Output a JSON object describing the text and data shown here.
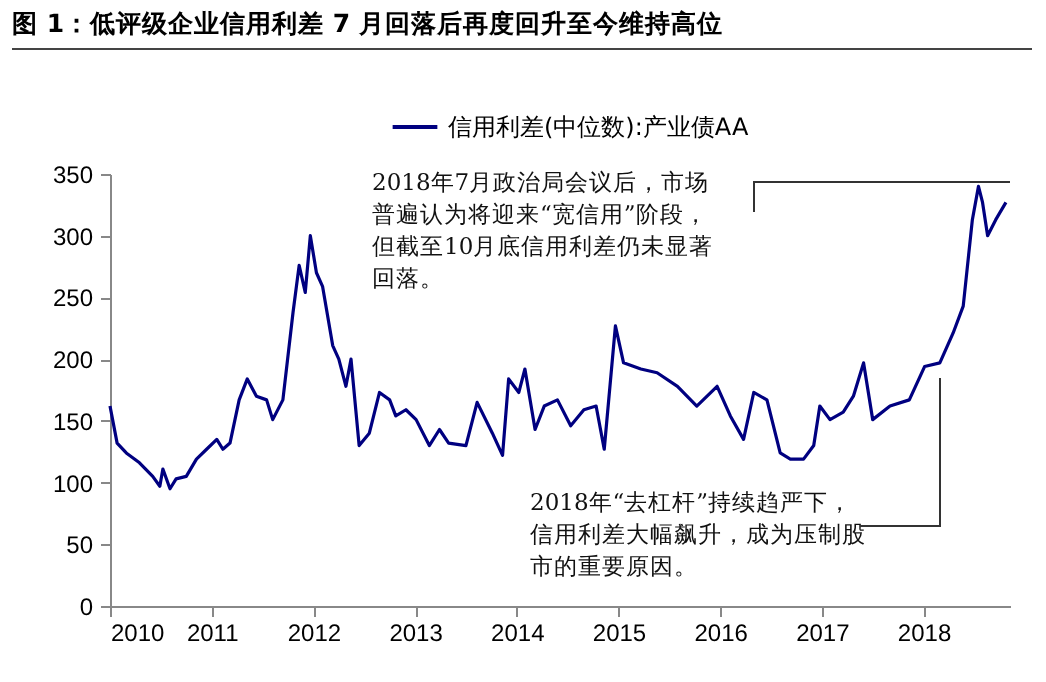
{
  "chart_data": {
    "type": "line",
    "title": "图 1：低评级企业信用利差 7 月回落后再度回升至今维持高位",
    "x": [
      2010.0,
      2010.07,
      2010.16,
      2010.29,
      2010.42,
      2010.49,
      2010.52,
      2010.59,
      2010.65,
      2010.75,
      2010.85,
      2010.95,
      2011.05,
      2011.11,
      2011.18,
      2011.27,
      2011.35,
      2011.44,
      2011.54,
      2011.6,
      2011.7,
      2011.8,
      2011.86,
      2011.92,
      2011.97,
      2012.03,
      2012.09,
      2012.19,
      2012.25,
      2012.32,
      2012.37,
      2012.45,
      2012.55,
      2012.65,
      2012.75,
      2012.81,
      2012.91,
      2013.01,
      2013.14,
      2013.24,
      2013.33,
      2013.5,
      2013.61,
      2013.76,
      2013.86,
      2013.92,
      2014.02,
      2014.08,
      2014.18,
      2014.27,
      2014.4,
      2014.53,
      2014.66,
      2014.78,
      2014.86,
      2014.97,
      2015.05,
      2015.22,
      2015.38,
      2015.58,
      2015.77,
      2015.97,
      2016.1,
      2016.23,
      2016.33,
      2016.46,
      2016.59,
      2016.69,
      2016.82,
      2016.92,
      2016.98,
      2017.08,
      2017.21,
      2017.31,
      2017.41,
      2017.5,
      2017.67,
      2017.86,
      2018.01,
      2018.16,
      2018.29,
      2018.39,
      2018.48,
      2018.54,
      2018.58,
      2018.63,
      2018.71,
      2018.81
    ],
    "series": [
      {
        "name": "信用利差(中位数):产业债AA",
        "color": "#000080",
        "values": [
          162,
          132,
          124,
          116,
          105,
          97,
          111,
          95,
          103,
          105,
          119,
          127,
          135,
          127,
          132,
          167,
          184,
          170,
          167,
          151,
          167,
          238,
          276,
          254,
          300,
          270,
          259,
          211,
          200,
          178,
          200,
          130,
          140,
          173,
          167,
          154,
          159,
          151,
          130,
          143,
          132,
          130,
          165,
          140,
          122,
          184,
          173,
          192,
          143,
          162,
          167,
          146,
          159,
          162,
          127,
          227,
          197,
          192,
          189,
          178,
          162,
          178,
          154,
          135,
          173,
          167,
          124,
          119,
          119,
          130,
          162,
          151,
          157,
          170,
          197,
          151,
          162,
          167,
          194,
          197,
          221,
          243,
          313,
          340,
          327,
          300,
          313,
          327
        ]
      }
    ],
    "xlim": [
      2010,
      2018.85
    ],
    "xticks": [
      2010,
      2011,
      2012,
      2013,
      2014,
      2015,
      2016,
      2017,
      2018
    ],
    "ylim": [
      0,
      350
    ],
    "yticks": [
      0,
      50,
      100,
      150,
      200,
      250,
      300,
      350
    ],
    "grid": false,
    "legend": "top",
    "annotations": [
      "2018年7月政治局会议后，市场普遍认为将迎来“宽信用”阶段，但截至10月底信用利差仍未显著回落。",
      "2018年“去杠杆”持续趋严下，信用利差大幅飙升，成为压制股市的重要原因。"
    ]
  }
}
